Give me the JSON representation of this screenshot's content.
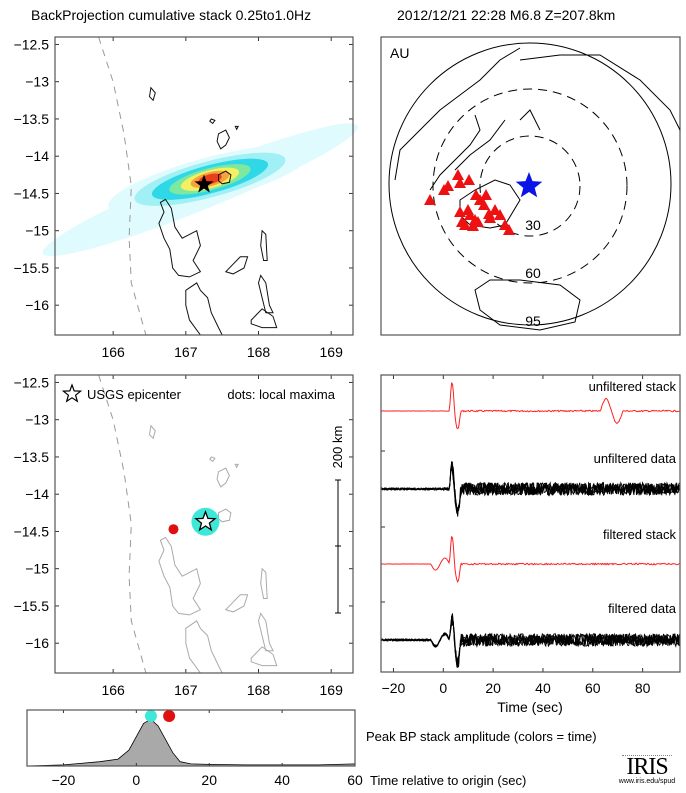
{
  "header": {
    "title_left": "BackProjection cumulative stack 0.25to1.0Hz",
    "title_right": "2012/12/21 22:28  M6.8  Z=207.8km"
  },
  "chart_data": [
    {
      "id": "bp-map",
      "type": "heatmap",
      "title": "BackProjection cumulative stack",
      "xlim": [
        165.2,
        169.3
      ],
      "ylim": [
        -16.4,
        -12.4
      ],
      "xticks": [
        166,
        167,
        168,
        169
      ],
      "yticks": [
        -12.5,
        -13,
        -13.5,
        -14,
        -14.5,
        -15,
        -15.5,
        -16
      ],
      "epicenter": {
        "lon": 167.25,
        "lat": -14.38
      },
      "peak": {
        "lon": 167.25,
        "lat": -14.35
      },
      "colormap": [
        "#e0fbfd",
        "#a0f0f5",
        "#2fd8e6",
        "#7fe8a0",
        "#f5f060",
        "#f7a23a",
        "#e8401c"
      ]
    },
    {
      "id": "station-map",
      "type": "scatter",
      "network_label": "AU",
      "distance_rings_deg": [
        30,
        60,
        95
      ],
      "event_marker": "blue-star",
      "station_count": 24,
      "station_marker": "red-triangle"
    },
    {
      "id": "local-maxima-map",
      "type": "scatter",
      "xlim": [
        165.2,
        169.3
      ],
      "ylim": [
        -16.4,
        -12.4
      ],
      "xticks": [
        166,
        167,
        168,
        169
      ],
      "yticks": [
        -12.5,
        -13,
        -13.5,
        -14,
        -14.5,
        -15,
        -15.5,
        -16
      ],
      "legend_star": "USGS epicenter",
      "legend_dots": "dots: local maxima",
      "scale_bar": "200 km",
      "epicenter": {
        "lon": 167.27,
        "lat": -14.37
      },
      "maxima": [
        {
          "lon": 167.27,
          "lat": -14.37,
          "color": "#3ee8d8",
          "time": 4
        },
        {
          "lon": 166.83,
          "lat": -14.47,
          "color": "#e01010",
          "time": 9
        }
      ]
    },
    {
      "id": "waveforms",
      "type": "line",
      "xlabel": "Time (sec)",
      "xlim": [
        -25,
        95
      ],
      "xticks": [
        -20,
        0,
        20,
        40,
        60,
        80
      ],
      "series": [
        {
          "name": "unfiltered stack",
          "color": "#ff2020"
        },
        {
          "name": "unfiltered data",
          "color": "#000000"
        },
        {
          "name": "filtered stack",
          "color": "#ff2020"
        },
        {
          "name": "filtered data",
          "color": "#000000"
        }
      ]
    },
    {
      "id": "peak-amplitude",
      "type": "area",
      "title": "Peak BP stack amplitude (colors = time)",
      "xlabel": "Time relative to origin (sec)",
      "xlim": [
        -30,
        60
      ],
      "xticks": [
        -20,
        0,
        20,
        40,
        60
      ],
      "x": [
        -30,
        -20,
        -10,
        -5,
        -2,
        0,
        2,
        4,
        6,
        8,
        10,
        12,
        15,
        20,
        30,
        40,
        50,
        60
      ],
      "y": [
        0.0,
        0.02,
        0.08,
        0.13,
        0.3,
        0.55,
        0.8,
        0.88,
        0.75,
        0.5,
        0.25,
        0.08,
        0.04,
        0.03,
        0.02,
        0.02,
        0.02,
        0.04
      ],
      "markers": [
        {
          "t": 4,
          "color": "#3ee8d8"
        },
        {
          "t": 9,
          "color": "#e01010"
        }
      ]
    }
  ],
  "logo": {
    "name": "IRIS",
    "url_text": "www.iris.edu/spud"
  }
}
